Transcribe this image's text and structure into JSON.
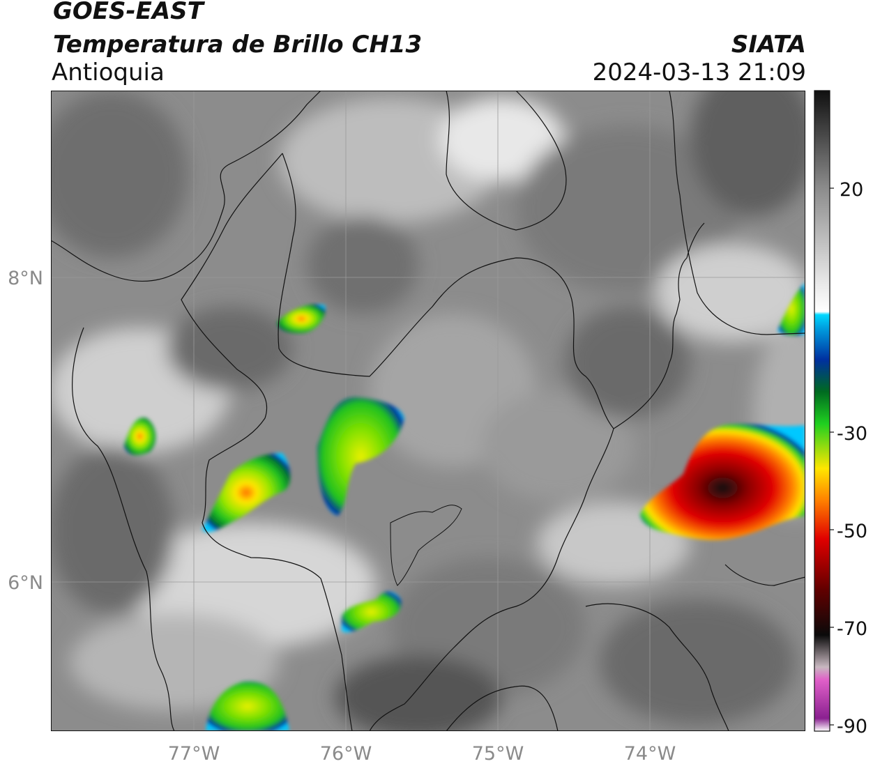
{
  "header": {
    "satellite": "GOES-EAST",
    "product": "Temperatura de Brillo CH13",
    "region": "Antioquia",
    "organization": "SIATA",
    "datetime": "2024-03-13 21:09"
  },
  "map": {
    "lon_ticks": [
      "77°W",
      "76°W",
      "75°W",
      "74°W"
    ],
    "lat_ticks": [
      "8°N",
      "6°N"
    ],
    "lon_range": [
      -77.95,
      -73.0
    ],
    "lat_range": [
      5.0,
      9.2
    ]
  },
  "colorbar": {
    "tick_labels": [
      "20",
      "-30",
      "-50",
      "-70",
      "-90"
    ],
    "colors": {
      "warm_gray": "#2a2a2a",
      "light_gray": "#f2f2f2",
      "cyan": "#00c8ff",
      "blue": "#0030a0",
      "green": "#1fd020",
      "yellow": "#ffe600",
      "red": "#e00000",
      "dark_red": "#600000",
      "black": "#0a0a0a",
      "magenta": "#d040c0",
      "purple": "#8a2090"
    }
  }
}
